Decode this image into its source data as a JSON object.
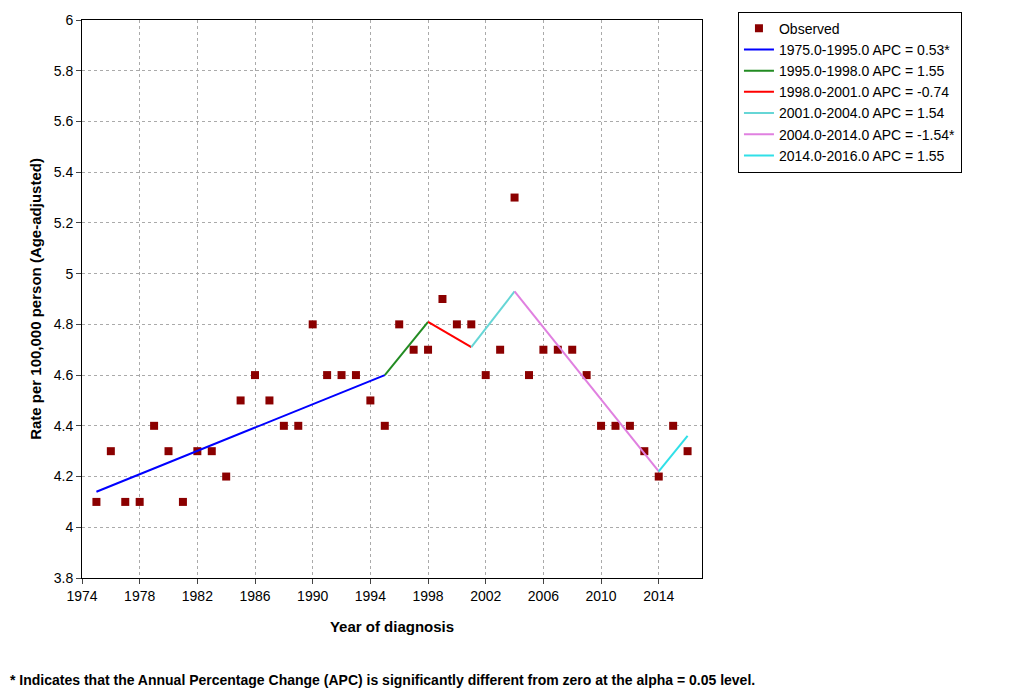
{
  "chart_data": {
    "type": "scatter",
    "x_label": "Year of diagnosis",
    "y_label": "Rate per 100,000 person (Age-adjusted)",
    "annotations": [
      "* Indicates that the Annual Percentage Change (APC) is significantly different from zero at the alpha = 0.05 level."
    ],
    "xlim": [
      1974,
      2017
    ],
    "xticks": [
      1974,
      1978,
      1982,
      1986,
      1990,
      1994,
      1998,
      2002,
      2006,
      2010,
      2014
    ],
    "ylim": [
      3.8,
      6
    ],
    "yticks": [
      3.8,
      4,
      4.2,
      4.4,
      4.6,
      4.8,
      5,
      5.2,
      5.4,
      5.6,
      5.8,
      6
    ],
    "grid": true,
    "legend": "top right",
    "series": [
      {
        "name": "Observed",
        "type": "scatter",
        "marker": "square",
        "color": "#8b0000",
        "x": [
          1975,
          1976,
          1977,
          1978,
          1979,
          1980,
          1981,
          1982,
          1983,
          1984,
          1985,
          1986,
          1987,
          1988,
          1989,
          1990,
          1991,
          1992,
          1993,
          1994,
          1995,
          1996,
          1997,
          1998,
          1999,
          2000,
          2001,
          2002,
          2003,
          2004,
          2005,
          2006,
          2007,
          2008,
          2009,
          2010,
          2011,
          2012,
          2013,
          2014,
          2015,
          2016
        ],
        "values": [
          4.1,
          4.3,
          4.1,
          4.1,
          4.4,
          4.3,
          4.1,
          4.3,
          4.3,
          4.2,
          4.5,
          4.6,
          4.5,
          4.4,
          4.4,
          4.8,
          4.6,
          4.6,
          4.6,
          4.5,
          4.4,
          4.8,
          4.7,
          4.7,
          4.9,
          4.8,
          4.8,
          4.6,
          4.7,
          5.3,
          4.6,
          4.7,
          4.7,
          4.7,
          4.6,
          4.4,
          4.4,
          4.4,
          4.3,
          4.2,
          4.4,
          4.3
        ]
      },
      {
        "name": "1975.0-1995.0 APC = 0.53*",
        "type": "line",
        "line_style": "solid",
        "color": "#0000ff",
        "x": [
          1975,
          1995
        ],
        "values": [
          4.14,
          4.6
        ]
      },
      {
        "name": "1995.0-1998.0 APC = 1.55",
        "type": "line",
        "line_style": "solid",
        "color": "#228b22",
        "x": [
          1995,
          1998
        ],
        "values": [
          4.6,
          4.81
        ]
      },
      {
        "name": "1998.0-2001.0 APC = -0.74",
        "type": "line",
        "line_style": "solid",
        "color": "#ff0000",
        "x": [
          1998,
          2001
        ],
        "values": [
          4.81,
          4.71
        ]
      },
      {
        "name": "2001.0-2004.0 APC = 1.54",
        "type": "line",
        "line_style": "solid",
        "color": "#66d6d6",
        "x": [
          2001,
          2004
        ],
        "values": [
          4.71,
          4.93
        ]
      },
      {
        "name": "2004.0-2014.0 APC = -1.54*",
        "type": "line",
        "line_style": "solid",
        "color": "#e080e0",
        "x": [
          2004,
          2014
        ],
        "values": [
          4.93,
          4.22
        ]
      },
      {
        "name": "2014.0-2016.0 APC = 1.55",
        "type": "line",
        "line_style": "solid",
        "color": "#30e0e8",
        "x": [
          2014,
          2016
        ],
        "values": [
          4.22,
          4.36
        ]
      }
    ]
  }
}
